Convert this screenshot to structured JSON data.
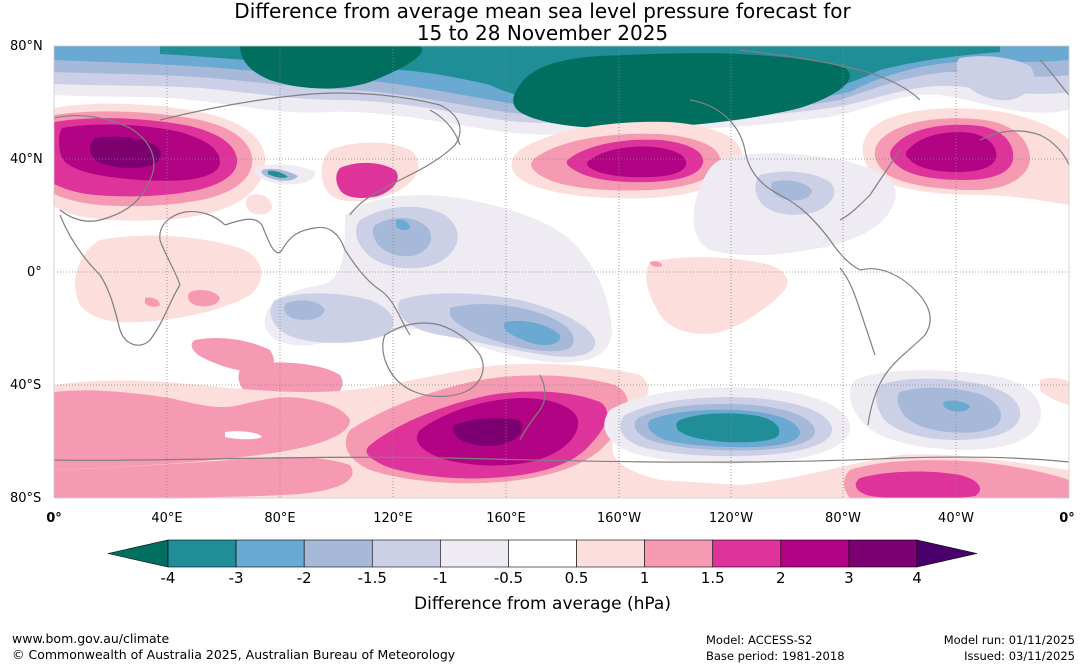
{
  "title": {
    "line1": "Difference from average mean sea level pressure forecast for",
    "line2": "15 to 28 November 2025"
  },
  "map": {
    "lat_labels": [
      "80°N",
      "40°N",
      "0°",
      "40°S",
      "80°S"
    ],
    "lon_labels": [
      "0°",
      "40°E",
      "80°E",
      "120°E",
      "160°E",
      "160°W",
      "120°W",
      "80°W",
      "40°W",
      "0°"
    ],
    "anomaly_regions": [
      {
        "name": "arctic-siberia-low",
        "value": -4
      },
      {
        "name": "north-pacific-low",
        "value": -4
      },
      {
        "name": "north-atlantic-high",
        "value": 3
      },
      {
        "name": "central-asia-high",
        "value": 3
      },
      {
        "name": "north-pacific-high",
        "value": 3
      },
      {
        "name": "new-zealand-high",
        "value": 4
      },
      {
        "name": "south-pacific-low",
        "value": -3
      },
      {
        "name": "south-atlantic-low",
        "value": -2
      },
      {
        "name": "tropical-west-pacific-low",
        "value": -2
      }
    ]
  },
  "colorbar": {
    "ticks": [
      "-4",
      "-3",
      "-2",
      "-1.5",
      "-1",
      "-0.5",
      "0.5",
      "1",
      "1.5",
      "2",
      "3",
      "4"
    ],
    "colors": [
      "#006f60",
      "#1f8e97",
      "#6aa9d2",
      "#a7b9d8",
      "#ccd0e6",
      "#efebf3",
      "#ffffff",
      "#fcdedc",
      "#f69ab4",
      "#de339a",
      "#b20384",
      "#7c006f",
      "#49006a"
    ],
    "label": "Difference from average (hPa)"
  },
  "footer": {
    "website": "www.bom.gov.au/climate",
    "copyright": "© Commonwealth of Australia 2025, Australian Bureau of Meteorology",
    "model": "Model: ACCESS-S2",
    "base_period": "Base period: 1981-2018",
    "model_run": "Model run: 01/11/2025",
    "issued": "Issued: 03/11/2025"
  }
}
